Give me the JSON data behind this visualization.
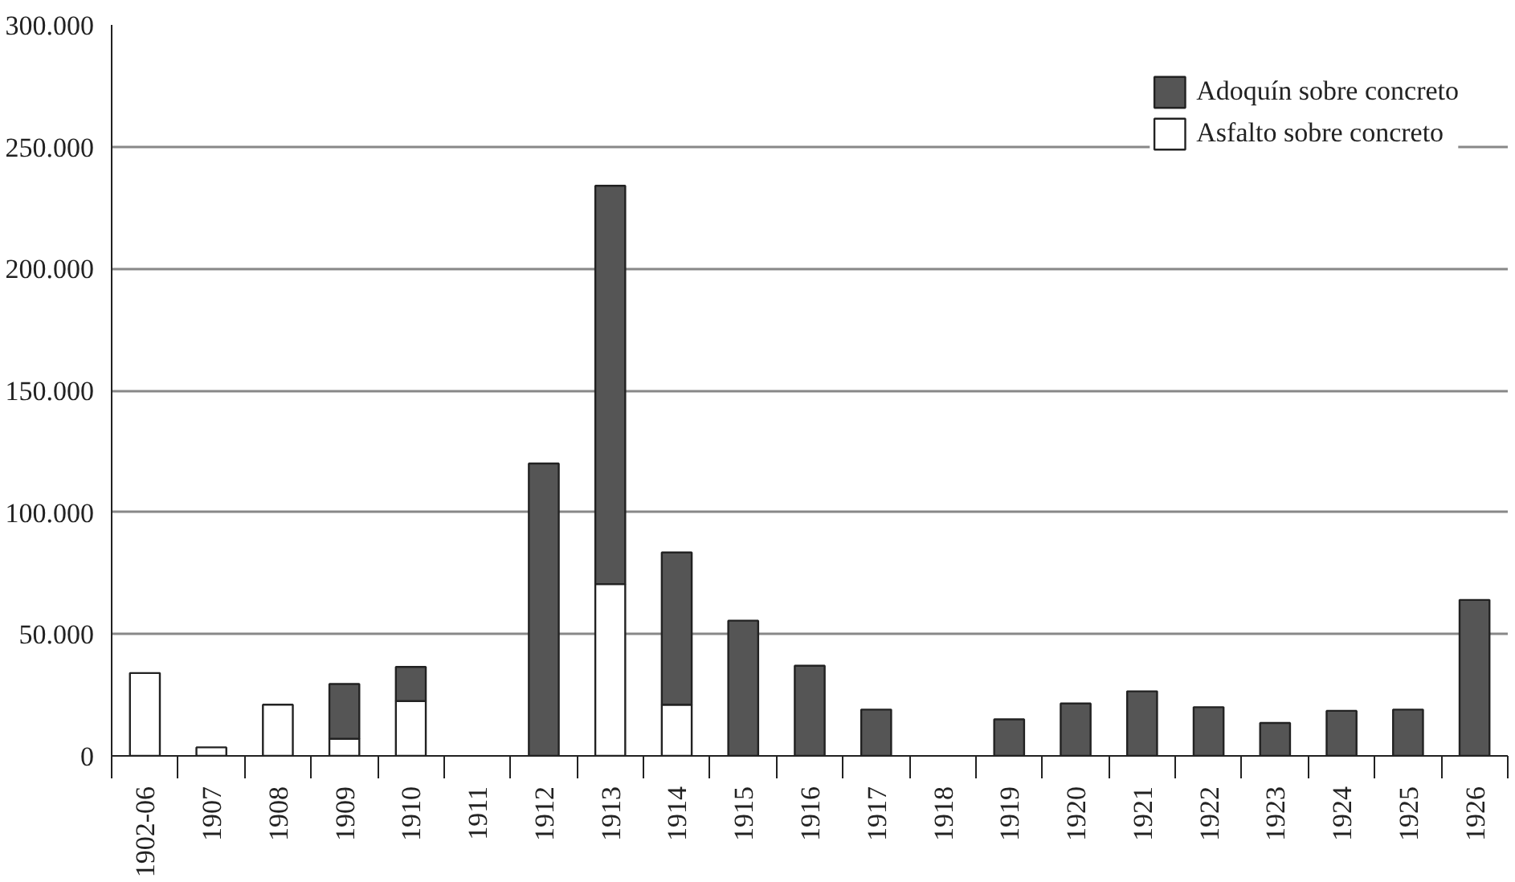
{
  "chart_data": {
    "type": "bar",
    "stacked": true,
    "categories": [
      "1902-06",
      "1907",
      "1908",
      "1909",
      "1910",
      "1911",
      "1912",
      "1913",
      "1914",
      "1915",
      "1916",
      "1917",
      "1918",
      "1919",
      "1920",
      "1921",
      "1922",
      "1923",
      "1924",
      "1925",
      "1926"
    ],
    "series": [
      {
        "name": "Asfalto sobre concreto",
        "color": "#ffffff",
        "values": [
          34000,
          3500,
          21000,
          7000,
          22500,
          null,
          null,
          70500,
          21000,
          null,
          null,
          null,
          null,
          null,
          null,
          null,
          null,
          null,
          null,
          null,
          null
        ]
      },
      {
        "name": "Adoquín sobre concreto",
        "color": "#555555",
        "values": [
          null,
          null,
          null,
          22500,
          14000,
          null,
          120000,
          163500,
          62500,
          55500,
          37000,
          19000,
          null,
          15000,
          21500,
          26500,
          20000,
          13500,
          18500,
          19000,
          64000
        ]
      }
    ],
    "ylim": [
      0,
      300000
    ],
    "yticks": [
      0,
      {
        "value": 50000,
        "label": "50.000"
      },
      {
        "value": 100000,
        "label": "100.000"
      },
      {
        "value": 150000,
        "label": "150.000"
      },
      {
        "value": 200000,
        "label": "200.000"
      },
      {
        "value": 250000,
        "label": "250.000"
      },
      {
        "value": 300000,
        "label": "300.000"
      }
    ],
    "grid": "y",
    "legend": "top right"
  }
}
